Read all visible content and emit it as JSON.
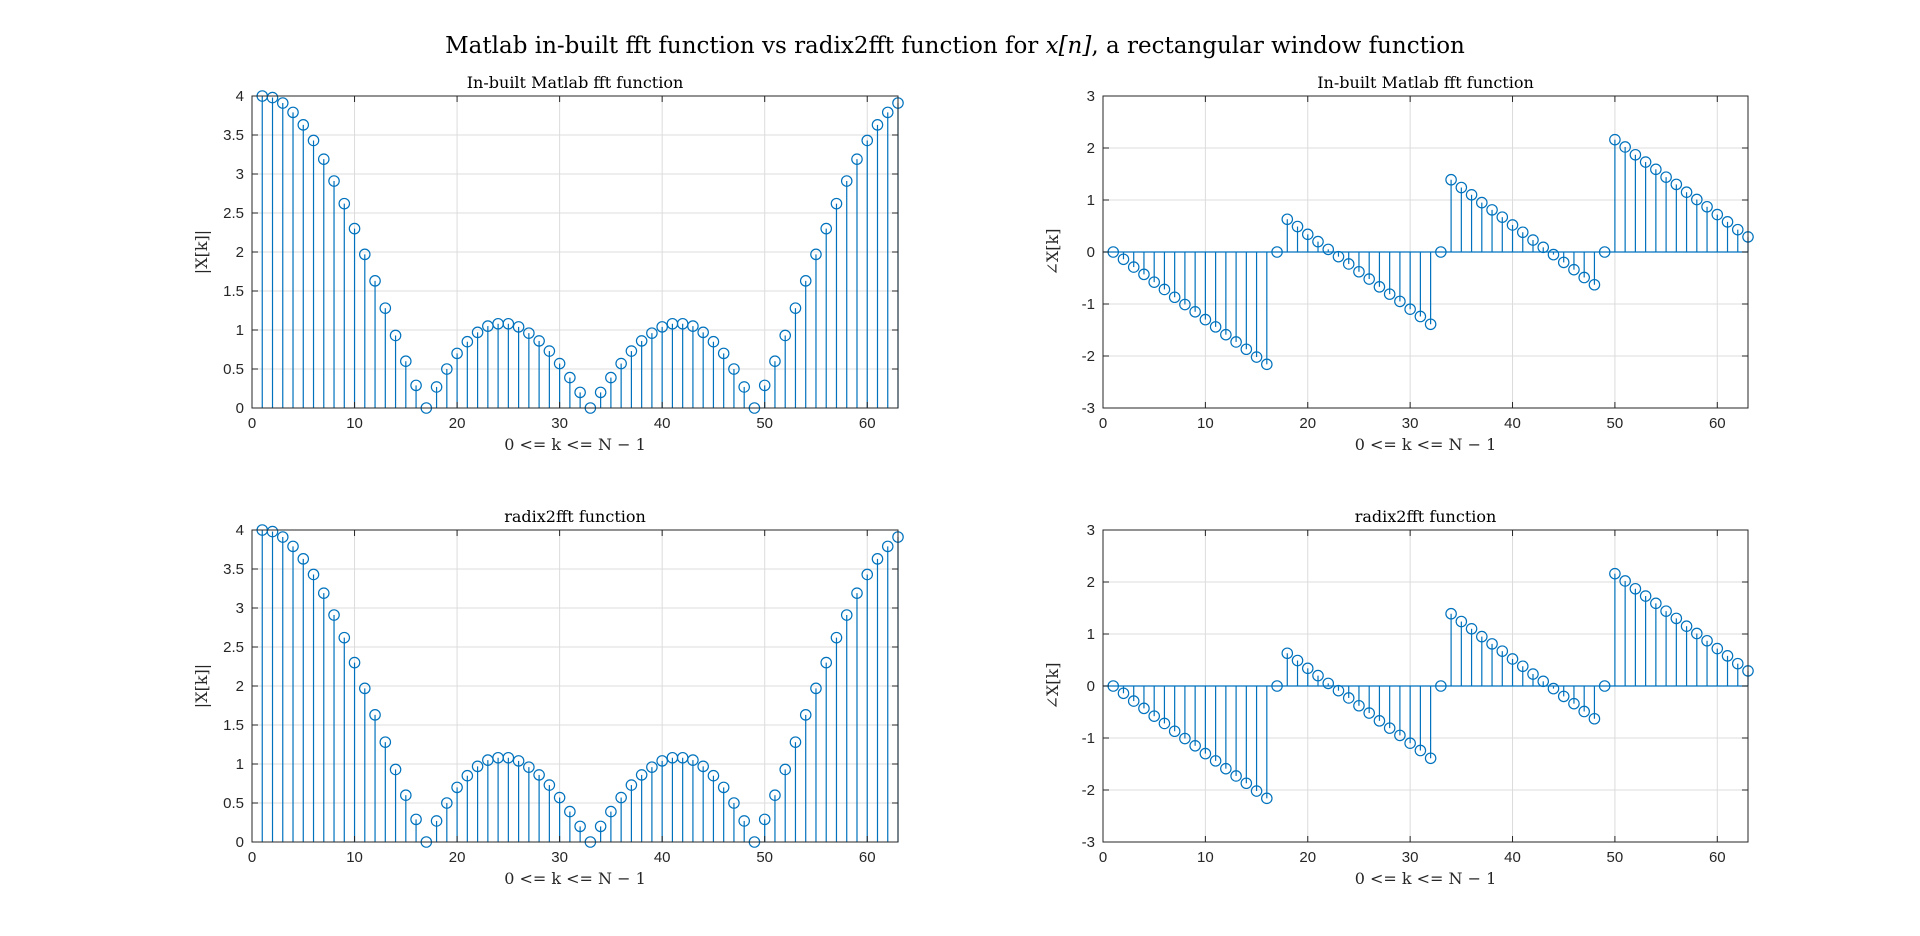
{
  "figure": {
    "supertitle_prefix": "Matlab in-built fft function vs radix2fft function for ",
    "supertitle_math": "x[n]",
    "supertitle_suffix": ", a rectangular window function"
  },
  "colors": {
    "stem": "#0072BD",
    "grid": "#dcdcdc",
    "axes": "#262626"
  },
  "chart_data": [
    {
      "type": "stem",
      "title": "In-built Matlab fft function",
      "xlabel": "0 <= k <= N − 1",
      "ylabel": "|X[k]|",
      "xlim": [
        0,
        63
      ],
      "ylim": [
        0,
        4
      ],
      "xticks": [
        0,
        10,
        20,
        30,
        40,
        50,
        60
      ],
      "yticks": [
        0,
        0.5,
        1,
        1.5,
        2,
        2.5,
        3,
        3.5,
        4
      ],
      "grid": true,
      "x": [
        1,
        2,
        3,
        4,
        5,
        6,
        7,
        8,
        9,
        10,
        11,
        12,
        13,
        14,
        15,
        16,
        17,
        18,
        19,
        20,
        21,
        22,
        23,
        24,
        25,
        26,
        27,
        28,
        29,
        30,
        31,
        32,
        33,
        34,
        35,
        36,
        37,
        38,
        39,
        40,
        41,
        42,
        43,
        44,
        45,
        46,
        47,
        48,
        49,
        50,
        51,
        52,
        53,
        54,
        55,
        56,
        57,
        58,
        59,
        60,
        61,
        62,
        63
      ],
      "values": [
        4.0,
        3.98,
        3.91,
        3.79,
        3.63,
        3.43,
        3.19,
        2.91,
        2.62,
        2.3,
        1.97,
        1.63,
        1.28,
        0.93,
        0.6,
        0.29,
        0.0,
        0.27,
        0.5,
        0.7,
        0.85,
        0.97,
        1.05,
        1.08,
        1.08,
        1.04,
        0.96,
        0.86,
        0.73,
        0.57,
        0.39,
        0.2,
        0.0,
        0.2,
        0.39,
        0.57,
        0.73,
        0.86,
        0.96,
        1.04,
        1.08,
        1.08,
        1.05,
        0.97,
        0.85,
        0.7,
        0.5,
        0.27,
        0.0,
        0.29,
        0.6,
        0.93,
        1.28,
        1.63,
        1.97,
        2.3,
        2.62,
        2.91,
        3.19,
        3.43,
        3.63,
        3.79,
        3.91
      ]
    },
    {
      "type": "stem",
      "title": "In-built Matlab fft function",
      "xlabel": "0 <= k <= N − 1",
      "ylabel": "∠X[k]",
      "xlim": [
        0,
        63
      ],
      "ylim": [
        -3,
        3
      ],
      "xticks": [
        0,
        10,
        20,
        30,
        40,
        50,
        60
      ],
      "yticks": [
        -3,
        -2,
        -1,
        0,
        1,
        2,
        3
      ],
      "grid": true,
      "x": [
        1,
        2,
        3,
        4,
        5,
        6,
        7,
        8,
        9,
        10,
        11,
        12,
        13,
        14,
        15,
        16,
        17,
        18,
        19,
        20,
        21,
        22,
        23,
        24,
        25,
        26,
        27,
        28,
        29,
        30,
        31,
        32,
        33,
        34,
        35,
        36,
        37,
        38,
        39,
        40,
        41,
        42,
        43,
        44,
        45,
        46,
        47,
        48,
        49,
        50,
        51,
        52,
        53,
        54,
        55,
        56,
        57,
        58,
        59,
        60,
        61,
        62,
        63
      ],
      "values": [
        0.0,
        -0.14,
        -0.29,
        -0.43,
        -0.58,
        -0.72,
        -0.87,
        -1.01,
        -1.15,
        -1.3,
        -1.44,
        -1.59,
        -1.73,
        -1.87,
        -2.02,
        -2.16,
        0.0,
        0.63,
        0.49,
        0.34,
        0.2,
        0.05,
        -0.09,
        -0.23,
        -0.38,
        -0.52,
        -0.67,
        -0.81,
        -0.95,
        -1.1,
        -1.24,
        -1.39,
        0.0,
        1.39,
        1.24,
        1.1,
        0.95,
        0.81,
        0.67,
        0.52,
        0.38,
        0.23,
        0.09,
        -0.05,
        -0.2,
        -0.34,
        -0.49,
        -0.63,
        0.0,
        2.16,
        2.02,
        1.87,
        1.73,
        1.59,
        1.44,
        1.3,
        1.15,
        1.01,
        0.87,
        0.72,
        0.58,
        0.43,
        0.29
      ]
    },
    {
      "type": "stem",
      "title": "radix2fft function",
      "xlabel": "0 <= k <= N − 1",
      "ylabel": "|X[k]|",
      "xlim": [
        0,
        63
      ],
      "ylim": [
        0,
        4
      ],
      "xticks": [
        0,
        10,
        20,
        30,
        40,
        50,
        60
      ],
      "yticks": [
        0,
        0.5,
        1,
        1.5,
        2,
        2.5,
        3,
        3.5,
        4
      ],
      "grid": true,
      "x": [
        1,
        2,
        3,
        4,
        5,
        6,
        7,
        8,
        9,
        10,
        11,
        12,
        13,
        14,
        15,
        16,
        17,
        18,
        19,
        20,
        21,
        22,
        23,
        24,
        25,
        26,
        27,
        28,
        29,
        30,
        31,
        32,
        33,
        34,
        35,
        36,
        37,
        38,
        39,
        40,
        41,
        42,
        43,
        44,
        45,
        46,
        47,
        48,
        49,
        50,
        51,
        52,
        53,
        54,
        55,
        56,
        57,
        58,
        59,
        60,
        61,
        62,
        63
      ],
      "values": [
        4.0,
        3.98,
        3.91,
        3.79,
        3.63,
        3.43,
        3.19,
        2.91,
        2.62,
        2.3,
        1.97,
        1.63,
        1.28,
        0.93,
        0.6,
        0.29,
        0.0,
        0.27,
        0.5,
        0.7,
        0.85,
        0.97,
        1.05,
        1.08,
        1.08,
        1.04,
        0.96,
        0.86,
        0.73,
        0.57,
        0.39,
        0.2,
        0.0,
        0.2,
        0.39,
        0.57,
        0.73,
        0.86,
        0.96,
        1.04,
        1.08,
        1.08,
        1.05,
        0.97,
        0.85,
        0.7,
        0.5,
        0.27,
        0.0,
        0.29,
        0.6,
        0.93,
        1.28,
        1.63,
        1.97,
        2.3,
        2.62,
        2.91,
        3.19,
        3.43,
        3.63,
        3.79,
        3.91
      ]
    },
    {
      "type": "stem",
      "title": "radix2fft function",
      "xlabel": "0 <= k <= N − 1",
      "ylabel": "∠X[k]",
      "xlim": [
        0,
        63
      ],
      "ylim": [
        -3,
        3
      ],
      "xticks": [
        0,
        10,
        20,
        30,
        40,
        50,
        60
      ],
      "yticks": [
        -3,
        -2,
        -1,
        0,
        1,
        2,
        3
      ],
      "grid": true,
      "x": [
        1,
        2,
        3,
        4,
        5,
        6,
        7,
        8,
        9,
        10,
        11,
        12,
        13,
        14,
        15,
        16,
        17,
        18,
        19,
        20,
        21,
        22,
        23,
        24,
        25,
        26,
        27,
        28,
        29,
        30,
        31,
        32,
        33,
        34,
        35,
        36,
        37,
        38,
        39,
        40,
        41,
        42,
        43,
        44,
        45,
        46,
        47,
        48,
        49,
        50,
        51,
        52,
        53,
        54,
        55,
        56,
        57,
        58,
        59,
        60,
        61,
        62,
        63
      ],
      "values": [
        0.0,
        -0.14,
        -0.29,
        -0.43,
        -0.58,
        -0.72,
        -0.87,
        -1.01,
        -1.15,
        -1.3,
        -1.44,
        -1.59,
        -1.73,
        -1.87,
        -2.02,
        -2.16,
        0.0,
        0.63,
        0.49,
        0.34,
        0.2,
        0.05,
        -0.09,
        -0.23,
        -0.38,
        -0.52,
        -0.67,
        -0.81,
        -0.95,
        -1.1,
        -1.24,
        -1.39,
        0.0,
        1.39,
        1.24,
        1.1,
        0.95,
        0.81,
        0.67,
        0.52,
        0.38,
        0.23,
        0.09,
        -0.05,
        -0.2,
        -0.34,
        -0.49,
        -0.63,
        0.0,
        2.16,
        2.02,
        1.87,
        1.73,
        1.59,
        1.44,
        1.3,
        1.15,
        1.01,
        0.87,
        0.72,
        0.58,
        0.43,
        0.29
      ]
    }
  ]
}
